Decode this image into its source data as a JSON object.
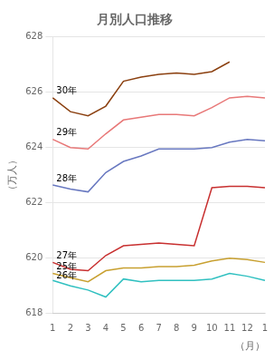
{
  "chart_data": {
    "type": "line",
    "title": "月別人口推移",
    "x_label": "（月）",
    "y_label": "（万人）",
    "categories": [
      "1",
      "2",
      "3",
      "4",
      "5",
      "6",
      "7",
      "8",
      "9",
      "10",
      "11",
      "12",
      "1"
    ],
    "series": [
      {
        "name": "30年",
        "color": "#8B4010",
        "values": [
          625.8,
          625.3,
          625.15,
          625.5,
          626.4,
          626.55,
          626.65,
          626.7,
          626.65,
          626.75,
          627.1,
          null,
          null
        ]
      },
      {
        "name": "29年",
        "color": "#E87878",
        "values": [
          624.3,
          624.0,
          623.95,
          624.5,
          625.0,
          625.1,
          625.2,
          625.2,
          625.15,
          625.45,
          625.8,
          625.85,
          625.8
        ]
      },
      {
        "name": "28年",
        "color": "#6878C0",
        "values": [
          622.65,
          622.5,
          622.4,
          623.1,
          623.5,
          623.7,
          623.95,
          623.95,
          623.95,
          624.0,
          624.2,
          624.3,
          624.25
        ]
      },
      {
        "name": "27年",
        "color": "#C83030",
        "values": [
          619.85,
          619.6,
          619.55,
          620.1,
          620.45,
          620.5,
          620.55,
          620.5,
          620.45,
          622.55,
          622.6,
          622.6,
          622.55
        ]
      },
      {
        "name": "25年",
        "color": "#C8A030",
        "values": [
          619.45,
          619.3,
          619.15,
          619.55,
          619.65,
          619.65,
          619.7,
          619.7,
          619.75,
          619.9,
          620.0,
          619.95,
          619.85
        ]
      },
      {
        "name": "26年",
        "color": "#30C0C0",
        "values": [
          619.2,
          619.0,
          618.85,
          618.6,
          619.25,
          619.15,
          619.2,
          619.2,
          619.2,
          619.25,
          619.45,
          619.35,
          619.2
        ]
      }
    ],
    "ylim": [
      618,
      628
    ],
    "yticks": [
      618,
      620,
      622,
      624,
      626,
      628
    ],
    "grid": true
  }
}
